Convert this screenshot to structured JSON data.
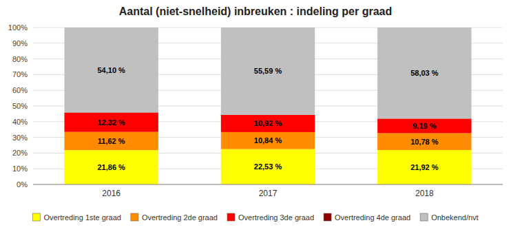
{
  "chart_data": {
    "type": "bar",
    "stacked": true,
    "title": "Aantal (niet-snelheid) inbreuken : indeling per graad",
    "categories": [
      "2016",
      "2017",
      "2018"
    ],
    "series": [
      {
        "name": "Overtreding 1ste graad",
        "color": "#ffff00",
        "values": [
          21.86,
          22.53,
          21.92
        ],
        "value_labels": [
          "21,86 %",
          "22,53 %",
          "21,92 %"
        ]
      },
      {
        "name": "Overtreding 2de graad",
        "color": "#ff8c00",
        "values": [
          11.62,
          10.84,
          10.78
        ],
        "value_labels": [
          "11,62 %",
          "10,84 %",
          "10,78 %"
        ]
      },
      {
        "name": "Overtreding 3de graad",
        "color": "#ff0000",
        "values": [
          12.32,
          10.92,
          9.19
        ],
        "value_labels": [
          "12,32 %",
          "10,92 %",
          "9,19 %"
        ]
      },
      {
        "name": "Overtreding 4de graad",
        "color": "#8b0000",
        "values": [
          0.1,
          0.12,
          0.08
        ]
      },
      {
        "name": "Onbekend/nvt",
        "color": "#c0c0c0",
        "values": [
          54.1,
          55.59,
          58.03
        ],
        "value_labels": [
          "54,10 %",
          "55,59 %",
          "58,03 %"
        ]
      }
    ],
    "ylim": [
      0,
      100
    ],
    "yticks": [
      {
        "value": 0,
        "label": "0%"
      },
      {
        "value": 10,
        "label": "10%"
      },
      {
        "value": 20,
        "label": "20%"
      },
      {
        "value": 30,
        "label": "30%"
      },
      {
        "value": 40,
        "label": "40%"
      },
      {
        "value": 50,
        "label": "50%"
      },
      {
        "value": 60,
        "label": "60%"
      },
      {
        "value": 70,
        "label": "70%"
      },
      {
        "value": 80,
        "label": "80%"
      },
      {
        "value": 90,
        "label": "90%"
      },
      {
        "value": 100,
        "label": "100%"
      }
    ],
    "grid": true,
    "legend": "bottom",
    "data_labels": true
  }
}
